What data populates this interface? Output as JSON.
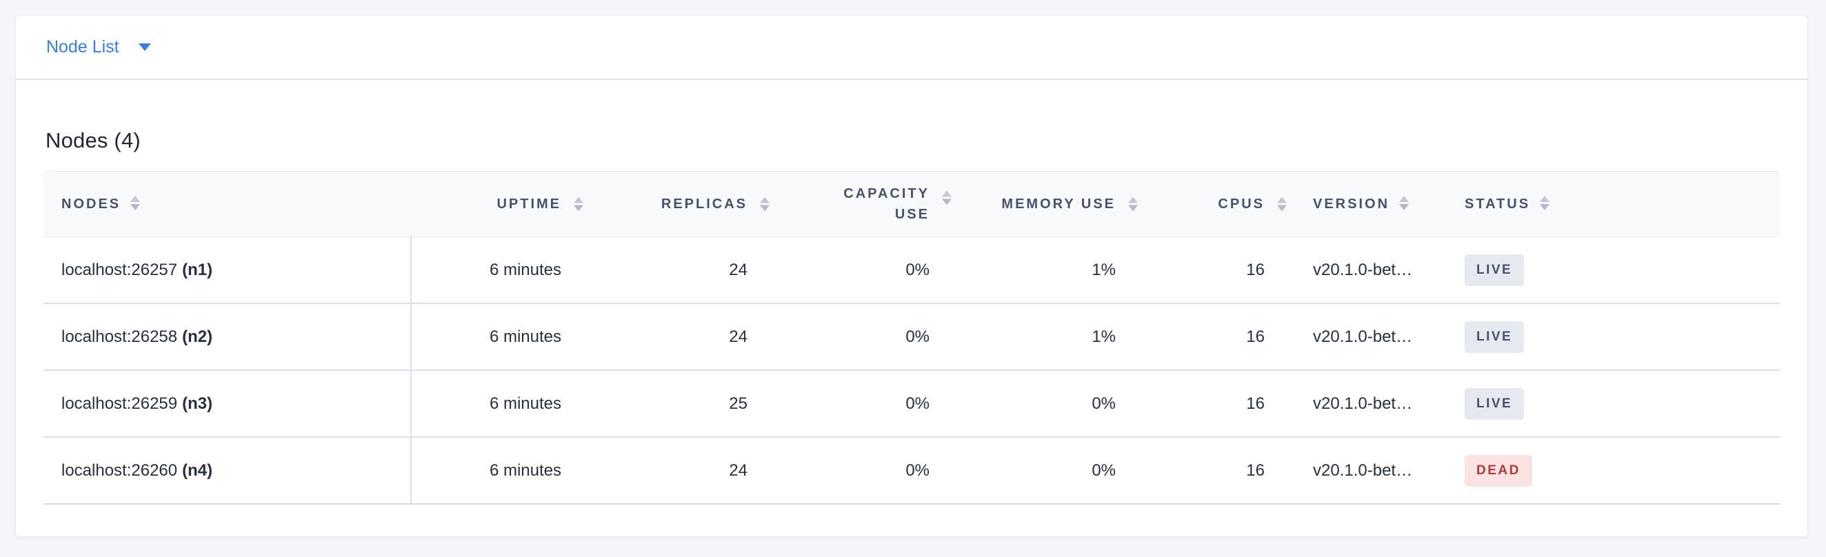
{
  "page": {
    "background_color": "#f4f6fa",
    "accent_color": "#3b7ce2"
  },
  "header_bar": {
    "dropdown_label": "Node List",
    "chevron_icon": "chevron-down"
  },
  "content": {
    "title": "Nodes (4)"
  },
  "table": {
    "columns": {
      "nodes": "Nodes",
      "uptime": "Uptime",
      "replicas": "Replicas",
      "capacity_use": "Capacity Use",
      "memory_use": "Memory Use",
      "cpus": "CPUs",
      "version": "Version",
      "status": "Status"
    },
    "sort_icon": "sort-up-down",
    "rows": [
      {
        "address": "localhost:26257",
        "id": "(n1)",
        "uptime": "6 minutes",
        "replicas": "24",
        "capacity_use": "0%",
        "memory_use": "1%",
        "cpus": "16",
        "version": "v20.1.0-bet…",
        "status": "LIVE"
      },
      {
        "address": "localhost:26258",
        "id": "(n2)",
        "uptime": "6 minutes",
        "replicas": "24",
        "capacity_use": "0%",
        "memory_use": "1%",
        "cpus": "16",
        "version": "v20.1.0-bet…",
        "status": "LIVE"
      },
      {
        "address": "localhost:26259",
        "id": "(n3)",
        "uptime": "6 minutes",
        "replicas": "25",
        "capacity_use": "0%",
        "memory_use": "0%",
        "cpus": "16",
        "version": "v20.1.0-bet…",
        "status": "LIVE"
      },
      {
        "address": "localhost:26260",
        "id": "(n4)",
        "uptime": "6 minutes",
        "replicas": "24",
        "capacity_use": "0%",
        "memory_use": "0%",
        "cpus": "16",
        "version": "v20.1.0-bet…",
        "status": "DEAD"
      }
    ]
  },
  "status_colors": {
    "live": {
      "background": "#e7e9f1",
      "text": "#46526b"
    },
    "dead": {
      "background": "#fbe3e3",
      "text": "#b23737"
    }
  }
}
